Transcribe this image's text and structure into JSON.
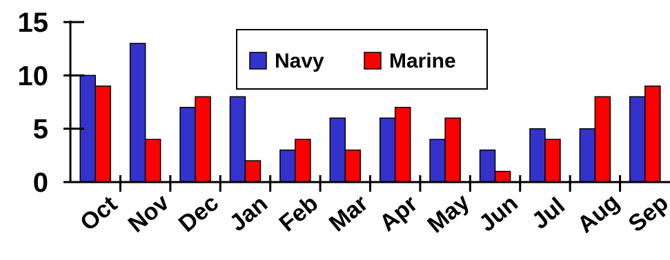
{
  "chart_data": {
    "type": "bar",
    "categories": [
      "Oct",
      "Nov",
      "Dec",
      "Jan",
      "Feb",
      "Mar",
      "Apr",
      "May",
      "Jun",
      "Jul",
      "Aug",
      "Sep"
    ],
    "series": [
      {
        "name": "Navy",
        "color": "#3333cc",
        "values": [
          10,
          13,
          7,
          8,
          3,
          6,
          6,
          4,
          3,
          5,
          5,
          8
        ]
      },
      {
        "name": "Marine",
        "color": "#ff0000",
        "values": [
          9,
          4,
          8,
          2,
          4,
          3,
          7,
          6,
          1,
          4,
          8,
          9
        ]
      }
    ],
    "yticks": [
      0,
      5,
      10,
      15
    ],
    "ylim": [
      0,
      15
    ],
    "grid": false,
    "legend_position": "top-center"
  }
}
